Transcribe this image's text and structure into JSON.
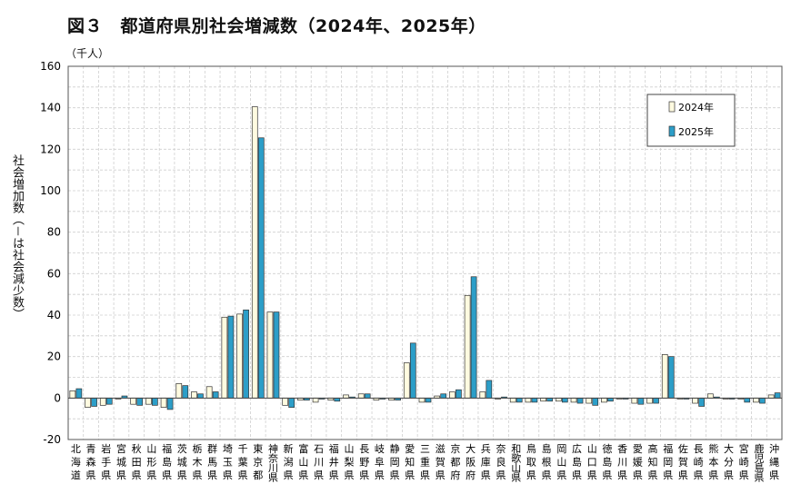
{
  "title": "図３　都道府県別社会増減数（2024年、2025年）",
  "unit_label": "（千人）",
  "y_axis_label": "社会増加数（－は社会減少数）",
  "colors": {
    "series2024": "#fffbe0",
    "series2025": "#2c9ec8",
    "stroke": "#333333",
    "grid": "#cfcfcf"
  },
  "chart_data": {
    "type": "bar",
    "title": "図３　都道府県別社会増減数（2024年、2025年）",
    "ylabel": "社会増加数（－は社会減少数）",
    "unit": "（千人）",
    "ylim": [
      -20,
      160
    ],
    "yticks": [
      "-20",
      "0",
      "20",
      "40",
      "60",
      "80",
      "100",
      "120",
      "140",
      "160"
    ],
    "grid": true,
    "legend_position": "top-right",
    "categories": [
      "北海道",
      "青森県",
      "岩手県",
      "宮城県",
      "秋田県",
      "山形県",
      "福島県",
      "茨城県",
      "栃木県",
      "群馬県",
      "埼玉県",
      "千葉県",
      "東京都",
      "神奈川県",
      "新潟県",
      "富山県",
      "石川県",
      "福井県",
      "山梨県",
      "長野県",
      "岐阜県",
      "静岡県",
      "愛知県",
      "三重県",
      "滋賀県",
      "京都府",
      "大阪府",
      "兵庫県",
      "奈良県",
      "和歌山県",
      "鳥取県",
      "島根県",
      "岡山県",
      "広島県",
      "山口県",
      "徳島県",
      "香川県",
      "愛媛県",
      "高知県",
      "福岡県",
      "佐賀県",
      "長崎県",
      "熊本県",
      "大分県",
      "宮崎県",
      "鹿児島県",
      "沖縄県"
    ],
    "series": [
      {
        "name": "2024年",
        "values": [
          3.5,
          -4.5,
          -3.5,
          -0.5,
          -3.0,
          -3.0,
          -4.5,
          7.0,
          3.0,
          5.5,
          39.0,
          40.5,
          140.5,
          41.5,
          -3.5,
          -1.0,
          -2.0,
          -1.0,
          1.5,
          2.0,
          -1.0,
          -1.0,
          17.0,
          -2.0,
          1.0,
          3.0,
          49.5,
          3.0,
          -0.5,
          -2.0,
          -2.0,
          -1.5,
          -1.5,
          -2.0,
          -2.5,
          -2.0,
          -0.5,
          -2.5,
          -2.5,
          21.0,
          -0.5,
          -2.5,
          2.0,
          -0.5,
          -0.5,
          -2.0,
          1.5
        ]
      },
      {
        "name": "2025年",
        "values": [
          4.5,
          -4.0,
          -3.0,
          1.0,
          -3.5,
          -3.5,
          -5.5,
          6.0,
          2.0,
          3.0,
          39.5,
          42.5,
          125.5,
          41.5,
          -4.5,
          -1.0,
          -0.5,
          -1.5,
          0.5,
          2.0,
          -0.5,
          -1.0,
          26.5,
          -2.0,
          2.0,
          4.0,
          58.5,
          8.5,
          0.5,
          -2.0,
          -2.0,
          -1.5,
          -2.0,
          -2.5,
          -3.5,
          -1.5,
          -0.5,
          -3.0,
          -2.5,
          20.0,
          -0.5,
          -4.0,
          0.5,
          -0.5,
          -2.0,
          -2.5,
          2.5
        ]
      }
    ]
  }
}
